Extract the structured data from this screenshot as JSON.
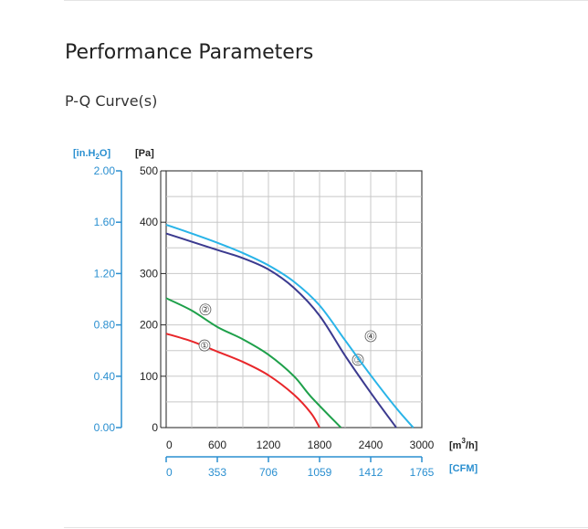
{
  "page": {
    "heading": "Performance Parameters",
    "subheading": "P-Q Curve(s)"
  },
  "chart_data": {
    "type": "line",
    "title": "",
    "x_unit": "[m³/h]",
    "x_unit_base": "[m",
    "x_unit_sup": "3",
    "x_unit_tail": "/h]",
    "x_secondary_unit": "[CFM]",
    "y_unit": "[Pa]",
    "y_secondary_unit_base": "[in.H",
    "y_secondary_unit_sub": "2",
    "y_secondary_unit_tail": "O]",
    "xlim": [
      0,
      3000
    ],
    "ylim": [
      0,
      500
    ],
    "x_ticks": [
      0,
      600,
      1200,
      1800,
      2400,
      3000
    ],
    "x_tick_labels": [
      "0",
      "600",
      "1200",
      "1800",
      "2400",
      "3000"
    ],
    "x_secondary_ticks": [
      "0",
      "353",
      "706",
      "1059",
      "1412",
      "1765"
    ],
    "y_ticks": [
      0,
      100,
      200,
      300,
      400,
      500
    ],
    "y_tick_labels": [
      "0",
      "100",
      "200",
      "300",
      "400",
      "500"
    ],
    "y_secondary_ticks": [
      "0.00",
      "0.40",
      "0.80",
      "1.20",
      "1.60",
      "2.00"
    ],
    "grid": true,
    "series": [
      {
        "name": "①",
        "color": "#e8262a",
        "x": [
          0,
          300,
          600,
          900,
          1200,
          1500,
          1700,
          1800
        ],
        "y": [
          183,
          168,
          148,
          128,
          102,
          64,
          28,
          0
        ],
        "marker_at": [
          450,
          160
        ]
      },
      {
        "name": "②",
        "color": "#1ea04a",
        "x": [
          0,
          300,
          600,
          900,
          1200,
          1500,
          1700,
          2050
        ],
        "y": [
          252,
          228,
          196,
          172,
          142,
          100,
          60,
          0
        ],
        "marker_at": [
          460,
          230
        ]
      },
      {
        "name": "③",
        "color": "#3b3a8f",
        "x": [
          0,
          300,
          600,
          900,
          1200,
          1500,
          1800,
          2100,
          2400,
          2700
        ],
        "y": [
          378,
          362,
          346,
          330,
          308,
          272,
          218,
          140,
          68,
          0
        ],
        "marker_at": [
          2250,
          132
        ]
      },
      {
        "name": "④",
        "color": "#29b4e8",
        "x": [
          0,
          300,
          600,
          900,
          1200,
          1500,
          1800,
          2100,
          2400,
          2700,
          2900
        ],
        "y": [
          395,
          378,
          360,
          340,
          316,
          284,
          238,
          170,
          102,
          38,
          0
        ],
        "marker_at": [
          2400,
          178
        ]
      }
    ]
  }
}
